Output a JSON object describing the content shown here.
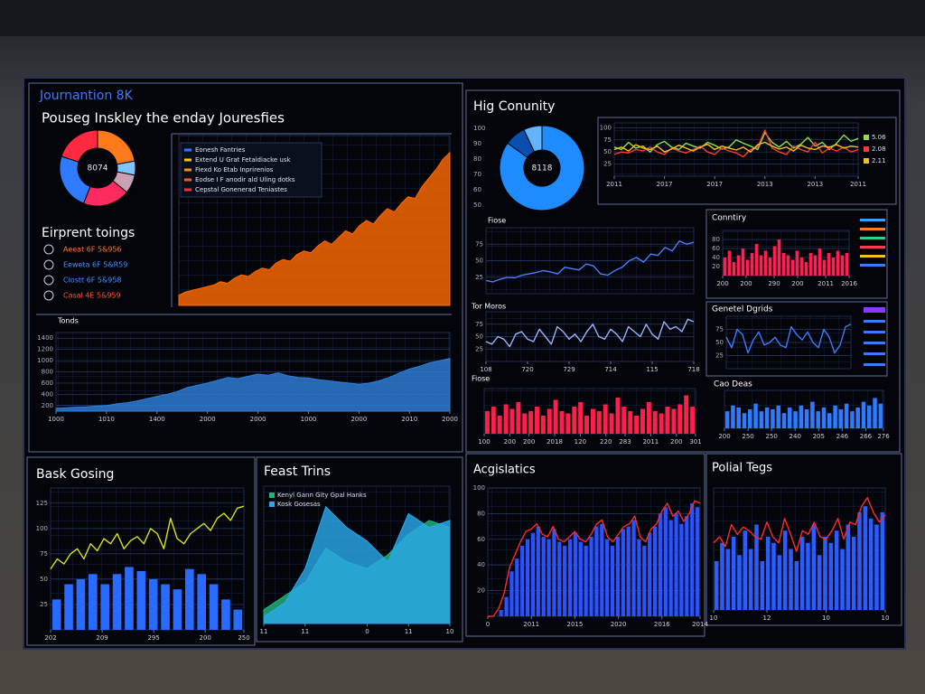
{
  "page": {
    "title": "Journantion 8K",
    "subtitle": "Pouseg Inskley the enday Jouresfies",
    "right_title": "Hig Conunity",
    "right_scale": [
      "100",
      "90",
      "80",
      "70",
      "60",
      "50"
    ],
    "side_list": {
      "title": "Eirprent toings",
      "items": [
        {
          "label": "Aeeat 6F 5&956",
          "color": "#ff7a2a"
        },
        {
          "label": "Eeweta 6F 5&R59",
          "color": "#4a90ff"
        },
        {
          "label": "Clostt 6F 5&958",
          "color": "#4a90ff"
        },
        {
          "label": "Casal 4E 5&959",
          "color": "#ff5a2a"
        }
      ]
    }
  },
  "chart_data": [
    {
      "type": "pie",
      "center_label": "8074",
      "values": [
        22,
        6,
        8,
        20,
        24,
        20
      ],
      "colors": [
        "#ff7a1a",
        "#7fc4ff",
        "#c9a0b4",
        "#ff2a5f",
        "#2f7bff",
        "#ff2a40"
      ]
    },
    {
      "type": "area",
      "color": "#ff6a00",
      "ylim": [
        0,
        100
      ],
      "legend_entries": [
        {
          "label": "Eonesh Fantries",
          "color": "#2f7bff"
        },
        {
          "label": "Extend U Grat Fetaidiacke usk",
          "color": "#f5c518"
        },
        {
          "label": "Fiexd Ko Etab Inprirenios",
          "color": "#ff8c1a"
        },
        {
          "label": "Eodse I F anodir ald Uling dotks",
          "color": "#ff5a1a"
        },
        {
          "label": "Cepstal Gonenerad Teniastes",
          "color": "#ff2a40"
        }
      ],
      "series": [
        {
          "color": "#ff6a00",
          "values": [
            6,
            8,
            9,
            10,
            11,
            12,
            14,
            13,
            16,
            18,
            17,
            20,
            22,
            21,
            25,
            27,
            26,
            30,
            32,
            31,
            35,
            38,
            36,
            40,
            44,
            42,
            47,
            50,
            48,
            53,
            57,
            55,
            60,
            64,
            63,
            70,
            75,
            80,
            86,
            90
          ]
        }
      ]
    },
    {
      "type": "area",
      "title": "Tonds",
      "ylim": [
        100,
        1500
      ],
      "yticks": [
        200,
        400,
        600,
        800,
        1000,
        1200,
        1400
      ],
      "xticks": [
        {
          "value": 0,
          "label": "1000"
        },
        {
          "value": 5,
          "label": "1010"
        },
        {
          "value": 10,
          "label": "1400"
        },
        {
          "value": 15,
          "label": "2000"
        },
        {
          "value": 20,
          "label": "2000"
        },
        {
          "value": 25,
          "label": "1000"
        },
        {
          "value": 30,
          "label": "2000"
        },
        {
          "value": 35,
          "label": "2010"
        },
        {
          "value": 39,
          "label": "2000"
        }
      ],
      "series": [
        {
          "color": "#2f7fd8",
          "values": [
            150,
            160,
            170,
            175,
            190,
            200,
            230,
            250,
            280,
            320,
            360,
            400,
            450,
            520,
            560,
            600,
            650,
            700,
            680,
            720,
            760,
            740,
            780,
            730,
            700,
            690,
            660,
            640,
            620,
            600,
            580,
            600,
            640,
            700,
            780,
            850,
            900,
            960,
            1000,
            1040
          ]
        }
      ]
    },
    {
      "type": "pie",
      "center_label": "8118",
      "values": [
        85,
        8,
        7
      ],
      "colors": [
        "#1e8bff",
        "#0a4fb0",
        "#63b3ff"
      ]
    },
    {
      "type": "line",
      "ylim": [
        0,
        110
      ],
      "yticks": [
        25,
        50,
        75,
        100
      ],
      "xticks": [
        {
          "value": 0,
          "label": "2011"
        },
        {
          "value": 7,
          "label": "2017"
        },
        {
          "value": 14,
          "label": "2017"
        },
        {
          "value": 21,
          "label": "2013"
        },
        {
          "value": 28,
          "label": "2013"
        },
        {
          "value": 34,
          "label": "2011"
        }
      ],
      "series": [
        {
          "name": "5.06",
          "color": "#8be04a",
          "values": [
            60,
            55,
            70,
            58,
            62,
            50,
            65,
            72,
            60,
            55,
            68,
            62,
            58,
            70,
            64,
            56,
            60,
            75,
            68,
            62,
            55,
            90,
            70,
            60,
            72,
            58,
            66,
            80,
            62,
            70,
            55,
            68,
            85,
            72,
            78
          ]
        },
        {
          "name": "2.08",
          "color": "#ff3a30",
          "values": [
            45,
            50,
            48,
            55,
            52,
            60,
            50,
            45,
            58,
            52,
            48,
            55,
            62,
            50,
            45,
            58,
            52,
            48,
            40,
            55,
            60,
            95,
            58,
            50,
            45,
            62,
            55,
            50,
            70,
            48,
            58,
            52,
            60,
            50,
            55
          ]
        },
        {
          "name": "2.11",
          "color": "#f0c020",
          "values": [
            55,
            60,
            52,
            65,
            58,
            55,
            62,
            50,
            56,
            64,
            58,
            52,
            60,
            66,
            55,
            62,
            58,
            54,
            60,
            50,
            65,
            70,
            62,
            56,
            60,
            52,
            64,
            58,
            55,
            62,
            60,
            65,
            58,
            62,
            60
          ]
        }
      ]
    },
    {
      "type": "line",
      "title": "Fiose",
      "ylim": [
        0,
        100
      ],
      "yticks": [
        25,
        50,
        75
      ],
      "series": [
        {
          "color": "#4a7dff",
          "values": [
            20,
            18,
            22,
            25,
            24,
            28,
            30,
            32,
            35,
            33,
            30,
            40,
            38,
            36,
            45,
            42,
            30,
            28,
            35,
            40,
            50,
            55,
            48,
            60,
            58,
            70,
            65,
            80,
            75,
            78
          ]
        }
      ]
    },
    {
      "type": "bar",
      "title": "Conntiry",
      "ylim": [
        0,
        100
      ],
      "yticks": [
        20,
        40,
        60,
        80
      ],
      "xticks": [
        {
          "value": 0,
          "label": "200"
        },
        {
          "value": 5,
          "label": "200"
        },
        {
          "value": 11,
          "label": "290"
        },
        {
          "value": 16,
          "label": "200"
        },
        {
          "value": 22,
          "label": "2011"
        },
        {
          "value": 27,
          "label": "2016"
        }
      ],
      "series": [
        {
          "color": "#ff2050",
          "values": [
            40,
            55,
            30,
            45,
            60,
            35,
            50,
            70,
            45,
            55,
            40,
            65,
            80,
            50,
            45,
            35,
            55,
            40,
            30,
            50,
            45,
            60,
            35,
            50,
            40,
            55,
            45,
            50
          ]
        }
      ]
    },
    {
      "type": "line",
      "title": "Tor Moros",
      "ylim": [
        0,
        100
      ],
      "yticks": [
        25,
        50,
        75
      ],
      "xticks": [
        {
          "value": 0,
          "label": "108"
        },
        {
          "value": 7,
          "label": "720"
        },
        {
          "value": 14,
          "label": "729"
        },
        {
          "value": 21,
          "label": "714"
        },
        {
          "value": 28,
          "label": "115"
        },
        {
          "value": 35,
          "label": "718"
        }
      ],
      "series": [
        {
          "color": "#9ab4ff",
          "values": [
            40,
            35,
            50,
            45,
            30,
            55,
            60,
            45,
            40,
            65,
            50,
            35,
            70,
            60,
            45,
            55,
            40,
            60,
            75,
            50,
            45,
            65,
            55,
            40,
            70,
            60,
            50,
            75,
            55,
            45,
            80,
            65,
            70,
            60,
            85,
            80
          ]
        }
      ]
    },
    {
      "type": "line",
      "title": "Genetel Dgrids",
      "ylim": [
        0,
        100
      ],
      "yticks": [
        25,
        50,
        75
      ],
      "series": [
        {
          "color": "#3d7bff",
          "values": [
            60,
            40,
            75,
            65,
            30,
            55,
            70,
            45,
            50,
            60,
            45,
            40,
            80,
            65,
            55,
            70,
            50,
            40,
            75,
            60,
            30,
            45,
            80,
            85
          ]
        }
      ]
    },
    {
      "type": "bar",
      "title": "Fiose",
      "ylim": [
        0,
        100
      ],
      "xticks": [
        {
          "value": 0,
          "label": "100"
        },
        {
          "value": 4,
          "label": "200"
        },
        {
          "value": 7,
          "label": "200"
        },
        {
          "value": 11,
          "label": "2018"
        },
        {
          "value": 15,
          "label": "120"
        },
        {
          "value": 19,
          "label": "220"
        },
        {
          "value": 22,
          "label": "283"
        },
        {
          "value": 26,
          "label": "2011"
        },
        {
          "value": 30,
          "label": "200"
        },
        {
          "value": 33,
          "label": "301"
        }
      ],
      "series": [
        {
          "color": "#ff1f4a",
          "values": [
            50,
            60,
            40,
            65,
            55,
            70,
            45,
            50,
            60,
            40,
            55,
            75,
            50,
            45,
            60,
            70,
            40,
            55,
            50,
            65,
            45,
            80,
            60,
            50,
            40,
            55,
            70,
            50,
            45,
            60,
            55,
            65,
            85,
            60
          ]
        }
      ]
    },
    {
      "type": "bar",
      "title": "Cao Deas",
      "ylim": [
        0,
        100
      ],
      "xticks": [
        {
          "value": 0,
          "label": "200"
        },
        {
          "value": 4,
          "label": "250"
        },
        {
          "value": 8,
          "label": "250"
        },
        {
          "value": 12,
          "label": "240"
        },
        {
          "value": 16,
          "label": "205"
        },
        {
          "value": 20,
          "label": "246"
        },
        {
          "value": 24,
          "label": "266"
        },
        {
          "value": 27,
          "label": "276"
        }
      ],
      "series": [
        {
          "color": "#2f7bff",
          "values": [
            45,
            60,
            55,
            40,
            50,
            65,
            45,
            55,
            50,
            60,
            40,
            55,
            45,
            60,
            50,
            70,
            45,
            55,
            40,
            60,
            50,
            65,
            45,
            55,
            70,
            60,
            80,
            65
          ]
        }
      ]
    },
    {
      "type": "combo",
      "title": "Bask Gosing",
      "ylim": [
        0,
        140
      ],
      "yticks": [
        25,
        50,
        75,
        100,
        125
      ],
      "xticks": [
        {
          "value": 0,
          "label": "202"
        },
        {
          "value": 4,
          "label": "209"
        },
        {
          "value": 8,
          "label": "295"
        },
        {
          "value": 12,
          "label": "200"
        },
        {
          "value": 15,
          "label": "250"
        }
      ],
      "series": [
        {
          "type": "bar",
          "color": "#2a6bff",
          "values": [
            30,
            45,
            50,
            55,
            45,
            55,
            62,
            58,
            50,
            45,
            40,
            60,
            55,
            45,
            30,
            20
          ]
        },
        {
          "type": "line",
          "color": "#d8e020",
          "values": [
            60,
            70,
            65,
            75,
            80,
            70,
            85,
            78,
            90,
            85,
            95,
            80,
            88,
            92,
            85,
            100,
            95,
            80,
            110,
            90,
            85,
            95,
            100,
            105,
            98,
            110,
            115,
            108,
            120,
            122
          ]
        }
      ]
    },
    {
      "type": "area",
      "title": "Feast Trins",
      "ylim": [
        0,
        100
      ],
      "xticks": [
        {
          "value": 0,
          "label": "11"
        },
        {
          "value": 2,
          "label": "11"
        },
        {
          "value": 5,
          "label": "0"
        },
        {
          "value": 7,
          "label": "11"
        },
        {
          "value": 9,
          "label": "10"
        }
      ],
      "series": [
        {
          "name": "Kenyl Gann Gity Gpal Hanks",
          "color": "#22b47a",
          "values": [
            10,
            20,
            30,
            55,
            45,
            40,
            50,
            65,
            75,
            70
          ]
        },
        {
          "name": "Kosk Gosesas",
          "color": "#2aa8e8",
          "values": [
            5,
            15,
            40,
            85,
            70,
            60,
            45,
            80,
            70,
            75
          ]
        }
      ]
    },
    {
      "type": "combo",
      "title": "Acgislatics",
      "ylim": [
        0,
        100
      ],
      "yticks": [
        20,
        40,
        60,
        80,
        100
      ],
      "xticks": [
        {
          "value": 0,
          "label": "0"
        },
        {
          "value": 8,
          "label": "2011"
        },
        {
          "value": 16,
          "label": "2015"
        },
        {
          "value": 24,
          "label": "2020"
        },
        {
          "value": 32,
          "label": "2016"
        },
        {
          "value": 39,
          "label": "2014"
        }
      ],
      "series": [
        {
          "type": "bar",
          "color": "#2a52ff",
          "values": [
            0,
            0,
            5,
            15,
            35,
            45,
            55,
            60,
            65,
            70,
            62,
            60,
            68,
            58,
            55,
            60,
            65,
            58,
            55,
            62,
            70,
            72,
            60,
            55,
            62,
            68,
            70,
            75,
            60,
            55,
            65,
            70,
            80,
            85,
            75,
            80,
            72,
            78,
            88,
            85
          ]
        },
        {
          "type": "line",
          "color": "#ff2a2a",
          "values": [
            0,
            0,
            6,
            18,
            38,
            48,
            58,
            66,
            68,
            72,
            64,
            62,
            70,
            60,
            58,
            62,
            66,
            60,
            58,
            64,
            72,
            75,
            62,
            58,
            64,
            70,
            72,
            78,
            62,
            58,
            68,
            72,
            82,
            88,
            78,
            82,
            74,
            80,
            90,
            88
          ]
        }
      ]
    },
    {
      "type": "combo",
      "title": "Polial Tegs",
      "ylim": [
        0,
        100
      ],
      "xticks": [
        {
          "value": 0,
          "label": "10"
        },
        {
          "value": 9,
          "label": "12"
        },
        {
          "value": 19,
          "label": "10"
        },
        {
          "value": 29,
          "label": "10"
        }
      ],
      "series": [
        {
          "type": "bar",
          "color": "#2a5cff",
          "values": [
            40,
            55,
            50,
            60,
            45,
            65,
            50,
            70,
            40,
            60,
            55,
            45,
            65,
            50,
            40,
            60,
            55,
            70,
            45,
            60,
            55,
            65,
            50,
            70,
            60,
            80,
            85,
            75,
            70,
            80
          ]
        },
        {
          "type": "line",
          "color": "#ff2a2a",
          "values": [
            55,
            60,
            52,
            70,
            62,
            68,
            65,
            60,
            58,
            72,
            60,
            55,
            75,
            62,
            48,
            65,
            62,
            72,
            60,
            58,
            65,
            75,
            58,
            72,
            70,
            85,
            92,
            80,
            72,
            78
          ]
        }
      ]
    }
  ]
}
